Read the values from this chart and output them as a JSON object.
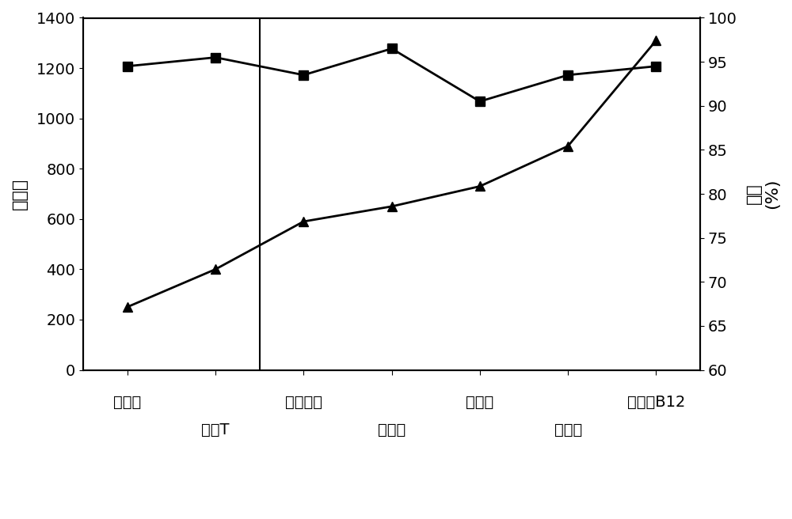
{
  "x_positions": [
    0,
    1,
    2,
    3,
    4,
    5,
    6
  ],
  "x_tick_labels_row1": [
    "甲基橙",
    "",
    "酸性品红",
    "",
    "甲基蓝",
    "",
    "维生素B12"
  ],
  "x_tick_labels_row2": [
    "",
    "铬黑T",
    "",
    "刚果红",
    "",
    "活性黑",
    ""
  ],
  "mw_values": [
    250,
    400,
    590,
    650,
    730,
    890,
    1310
  ],
  "rejection_values": [
    94.5,
    95.5,
    93.5,
    96.5,
    90.5,
    93.5,
    94.5
  ],
  "left_ylim": [
    0,
    1400
  ],
  "left_yticks": [
    0,
    200,
    400,
    600,
    800,
    1000,
    1200,
    1400
  ],
  "right_ylim": [
    60,
    100
  ],
  "right_yticks": [
    60,
    65,
    70,
    75,
    80,
    85,
    90,
    95,
    100
  ],
  "left_ylabel": "分子量",
  "right_ylabel_line1": "截率",
  "right_ylabel_line2": "(%)",
  "line_color": "#000000",
  "marker_triangle": "^",
  "marker_square": "s",
  "marker_size": 9,
  "linewidth": 2,
  "figsize": [
    10.0,
    6.56
  ],
  "dpi": 100,
  "vline_x": 1.5,
  "font_size_ticks": 14,
  "font_size_ylabel": 16
}
